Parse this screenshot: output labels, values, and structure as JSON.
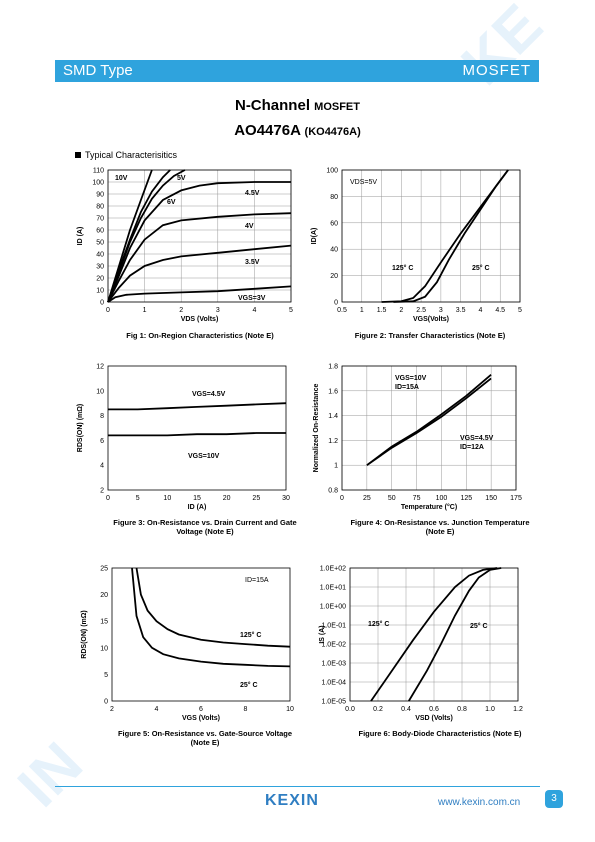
{
  "header": {
    "left": "SMD Type",
    "right": "MOSFET"
  },
  "title": {
    "line1": "N-Channel",
    "line1_small": "MOSFET",
    "part": "AO4476A",
    "alt": "(KO4476A)"
  },
  "section_label": "Typical  Characterisitics",
  "chart_data": [
    {
      "type": "line",
      "name": "fig1",
      "title": "Fig 1: On-Region Characteristics (Note E)",
      "xlabel": "VDS (Volts)",
      "ylabel": "ID (A)",
      "xlim": [
        0,
        5
      ],
      "ylim": [
        0,
        110
      ],
      "xticks": [
        "0",
        "1",
        "2",
        "3",
        "4",
        "5"
      ],
      "yticks": [
        "0",
        "10",
        "20",
        "30",
        "40",
        "50",
        "60",
        "70",
        "80",
        "90",
        "100",
        "110"
      ],
      "series": [
        {
          "name": "10V",
          "x": [
            0,
            0.3,
            0.6,
            0.9,
            1.2
          ],
          "y": [
            0,
            30,
            60,
            85,
            110
          ]
        },
        {
          "name": "5V",
          "x": [
            0,
            0.3,
            0.6,
            0.9,
            1.2,
            1.5,
            1.7
          ],
          "y": [
            0,
            27,
            52,
            75,
            92,
            104,
            110
          ]
        },
        {
          "name": "6V",
          "x": [
            0,
            0.3,
            0.6,
            0.9,
            1.2,
            1.5,
            1.8,
            2.1
          ],
          "y": [
            0,
            25,
            50,
            70,
            86,
            97,
            105,
            110
          ]
        },
        {
          "name": "4.5V",
          "x": [
            0,
            0.3,
            0.6,
            1,
            1.5,
            2,
            2.5,
            3,
            4,
            5
          ],
          "y": [
            0,
            22,
            45,
            68,
            85,
            93,
            97,
            99,
            100,
            100
          ]
        },
        {
          "name": "4V",
          "x": [
            0,
            0.3,
            0.6,
            1,
            1.5,
            2,
            3,
            4,
            5
          ],
          "y": [
            0,
            18,
            35,
            52,
            64,
            68,
            71,
            73,
            74
          ]
        },
        {
          "name": "3.5V",
          "x": [
            0,
            0.3,
            0.6,
            1,
            1.5,
            2,
            3,
            4,
            5
          ],
          "y": [
            0,
            12,
            22,
            30,
            35,
            38,
            41,
            44,
            47
          ]
        },
        {
          "name": "VGS=3V",
          "x": [
            0,
            0.2,
            0.5,
            1,
            2,
            3,
            4,
            5
          ],
          "y": [
            0,
            4,
            6,
            7,
            8,
            9,
            11,
            13
          ]
        }
      ],
      "labels": [
        "10V",
        "5V",
        "6V",
        "4.5V",
        "4V",
        "3.5V",
        "VGS=3V"
      ]
    },
    {
      "type": "line",
      "name": "fig2",
      "title": "Figure 2: Transfer Characteristics (Note E)",
      "xlabel": "VGS(Volts)",
      "ylabel": "ID(A)",
      "xlim": [
        0.5,
        5
      ],
      "ylim": [
        0,
        100
      ],
      "xticks": [
        "0.5",
        "1",
        "1.5",
        "2",
        "2.5",
        "3",
        "3.5",
        "4",
        "4.5",
        "5"
      ],
      "yticks": [
        "0",
        "20",
        "40",
        "60",
        "80",
        "100"
      ],
      "annotation": "VDS=5V",
      "series": [
        {
          "name": "125° C",
          "x": [
            1.5,
            2,
            2.3,
            2.6,
            3,
            3.5,
            4,
            4.5,
            4.7
          ],
          "y": [
            0,
            0.5,
            3,
            12,
            30,
            52,
            72,
            92,
            100
          ]
        },
        {
          "name": "25° C",
          "x": [
            1.8,
            2.3,
            2.6,
            2.9,
            3.2,
            3.6,
            4,
            4.4,
            4.7
          ],
          "y": [
            0,
            0.5,
            4,
            15,
            32,
            52,
            70,
            88,
            100
          ]
        }
      ]
    },
    {
      "type": "line",
      "name": "fig3",
      "title": "Figure 3: On-Resistance vs. Drain Current and Gate Voltage (Note E)",
      "xlabel": "ID (A)",
      "ylabel": "RDS(ON) (mΩ)",
      "xlim": [
        0,
        30
      ],
      "ylim": [
        2,
        12
      ],
      "xticks": [
        "0",
        "5",
        "10",
        "15",
        "20",
        "25",
        "30"
      ],
      "yticks": [
        "2",
        "4",
        "6",
        "8",
        "10",
        "12"
      ],
      "series": [
        {
          "name": "VGS=4.5V",
          "x": [
            0,
            5,
            10,
            15,
            20,
            25,
            30
          ],
          "y": [
            8.5,
            8.5,
            8.6,
            8.7,
            8.8,
            8.9,
            9.0
          ]
        },
        {
          "name": "VGS=10V",
          "x": [
            0,
            5,
            10,
            15,
            20,
            25,
            30
          ],
          "y": [
            6.4,
            6.4,
            6.4,
            6.5,
            6.5,
            6.6,
            6.6
          ]
        }
      ]
    },
    {
      "type": "line",
      "name": "fig4",
      "title": "Figure 4: On-Resistance vs. Junction Temperature (Note E)",
      "xlabel": "Temperature (°C)",
      "ylabel": "Normalized On-Resistance",
      "xlim": [
        0,
        175
      ],
      "ylim": [
        0.8,
        1.8
      ],
      "xticks": [
        "0",
        "25",
        "50",
        "75",
        "100",
        "125",
        "150",
        "175"
      ],
      "yticks": [
        "0.8",
        "1",
        "1.2",
        "1.4",
        "1.6",
        "1.8"
      ],
      "series": [
        {
          "name": "VGS=10V ID=15A",
          "x": [
            25,
            50,
            75,
            100,
            125,
            150
          ],
          "y": [
            1.0,
            1.15,
            1.27,
            1.41,
            1.56,
            1.73
          ]
        },
        {
          "name": "VGS=4.5V ID=12A",
          "x": [
            25,
            50,
            75,
            100,
            125,
            150
          ],
          "y": [
            1.0,
            1.14,
            1.26,
            1.39,
            1.54,
            1.7
          ]
        }
      ],
      "labels": [
        "VGS=10V",
        "ID=15A",
        "VGS=4.5V",
        "ID=12A"
      ]
    },
    {
      "type": "line",
      "name": "fig5",
      "title": "Figure 5: On-Resistance vs. Gate-Source Voltage (Note E)",
      "xlabel": "VGS (Volts)",
      "ylabel": "RDS(ON) (mΩ)",
      "xlim": [
        2,
        10
      ],
      "ylim": [
        0,
        25
      ],
      "xticks": [
        "2",
        "4",
        "6",
        "8",
        "10"
      ],
      "yticks": [
        "0",
        "5",
        "10",
        "15",
        "20",
        "25"
      ],
      "annotation": "ID=15A",
      "series": [
        {
          "name": "125° C",
          "x": [
            3.1,
            3.3,
            3.6,
            4,
            4.5,
            5,
            6,
            7,
            8,
            9,
            10
          ],
          "y": [
            25,
            20,
            17,
            15,
            13.5,
            12.5,
            11.5,
            11,
            10.7,
            10.4,
            10.2
          ]
        },
        {
          "name": "25° C",
          "x": [
            2.9,
            3.1,
            3.4,
            3.8,
            4.3,
            5,
            6,
            7,
            8,
            9,
            10
          ],
          "y": [
            25,
            16,
            12,
            10,
            8.8,
            8,
            7.4,
            7,
            6.8,
            6.6,
            6.5
          ]
        }
      ]
    },
    {
      "type": "line",
      "name": "fig6",
      "title": "Figure 6: Body-Diode Characteristics (Note E)",
      "xlabel": "VSD (Volts)",
      "ylabel": "IS (A)",
      "xlim": [
        0,
        1.2
      ],
      "ylim": [
        -5,
        2
      ],
      "yscale": "log",
      "xticks": [
        "0.0",
        "0.2",
        "0.4",
        "0.6",
        "0.8",
        "1.0",
        "1.2"
      ],
      "yticks": [
        "1.0E-05",
        "1.0E-04",
        "1.0E-03",
        "1.0E-02",
        "1.0E-01",
        "1.0E+00",
        "1.0E+01",
        "1.0E+02"
      ],
      "series": [
        {
          "name": "125° C",
          "x": [
            0.15,
            0.3,
            0.45,
            0.6,
            0.75,
            0.85,
            0.95,
            1.05
          ],
          "y": [
            -5,
            -3.4,
            -1.8,
            -0.3,
            1.0,
            1.6,
            1.9,
            2.0
          ]
        },
        {
          "name": "25° C",
          "x": [
            0.42,
            0.55,
            0.65,
            0.75,
            0.85,
            0.92,
            1.0,
            1.08
          ],
          "y": [
            -5,
            -3.4,
            -2.0,
            -0.5,
            0.8,
            1.5,
            1.9,
            2.0
          ]
        }
      ]
    }
  ],
  "captions": {
    "fig1": "Fig 1: On-Region Characteristics (Note E)",
    "fig2": "Figure 2: Transfer Characteristics (Note E)",
    "fig3a": "Figure 3: On-Resistance vs. Drain Current and Gate",
    "fig3b": "Voltage (Note E)",
    "fig4a": "Figure 4: On-Resistance vs. Junction Temperature",
    "fig4b": "(Note E)",
    "fig5a": "Figure 5: On-Resistance vs. Gate-Source Voltage",
    "fig5b": "(Note E)",
    "fig6": "Figure 6: Body-Diode Characteristics (Note E)"
  },
  "footer": {
    "logo": "KEXIN",
    "url": "www.kexin.com.cn",
    "page": "3"
  },
  "colors": {
    "accent": "#2fa3dd",
    "logo": "#2f7ec2"
  }
}
